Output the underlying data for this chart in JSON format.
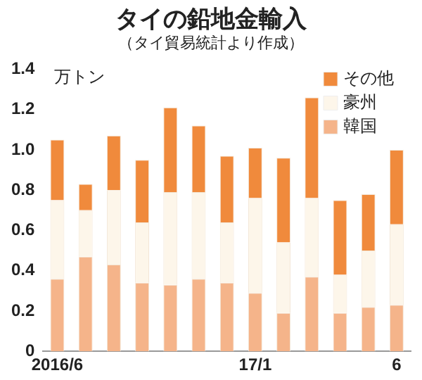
{
  "chart_data": {
    "type": "bar",
    "title": "タイの鉛地金輸入",
    "subtitle": "（タイ貿易統計より作成）",
    "ylabel": "万トン",
    "stacked": true,
    "legend": "top right",
    "grid": false,
    "categories": [
      "2016/6",
      null,
      null,
      null,
      null,
      null,
      null,
      "17/1",
      null,
      null,
      null,
      null,
      "6"
    ],
    "series": [
      {
        "name": "韓国",
        "color": "#f5b48a",
        "values": [
          0.36,
          0.47,
          0.43,
          0.34,
          0.33,
          0.36,
          0.34,
          0.29,
          0.19,
          0.37,
          0.19,
          0.22,
          0.23
        ]
      },
      {
        "name": "豪州",
        "color": "#fdf6ea",
        "values": [
          0.39,
          0.23,
          0.37,
          0.3,
          0.46,
          0.43,
          0.3,
          0.47,
          0.35,
          0.39,
          0.19,
          0.28,
          0.4
        ]
      },
      {
        "name": "その他",
        "color": "#f08a3c",
        "values": [
          0.3,
          0.13,
          0.27,
          0.31,
          0.42,
          0.33,
          0.33,
          0.25,
          0.42,
          0.5,
          0.37,
          0.28,
          0.37
        ]
      }
    ],
    "ylim": [
      0,
      1.4
    ],
    "yticks": [
      0,
      0.2,
      0.4,
      0.6,
      0.8,
      {
        "value": 1,
        "label": "1.0"
      },
      1.2,
      1.4
    ]
  }
}
